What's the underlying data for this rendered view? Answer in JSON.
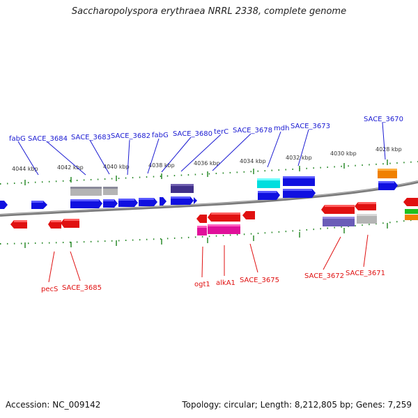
{
  "title": "Saccharopolyspora erythraea NRRL 2338, complete genome",
  "footer": {
    "accession": "Accession: NC_009142",
    "summary": "Topology: circular; Length: 8,212,805 bp; Genes: 7,259"
  },
  "colors": {
    "forward_label": "#1a1ad2",
    "reverse_label": "#e01010",
    "backbone": "#808080",
    "tick": "#2a8a2a"
  },
  "kbp_ticks": [
    "4044 kbp",
    "4042 kbp",
    "4040 kbp",
    "4038 kbp",
    "4036 kbp",
    "4034 kbp",
    "4032 kbp",
    "4030 kbp",
    "4028 kbp"
  ],
  "forward_labels": [
    "fabG",
    "SACE_3684",
    "SACE_3683",
    "SACE_3682",
    "fabG",
    "SACE_3680",
    "terC",
    "SACE_3678",
    "mdh",
    "SACE_3673",
    "SACE_3670"
  ],
  "reverse_labels": [
    "pecS",
    "SACE_3685",
    "ogt1",
    "alkA1",
    "SACE_3675",
    "SACE_3672",
    "SACE_3671"
  ]
}
